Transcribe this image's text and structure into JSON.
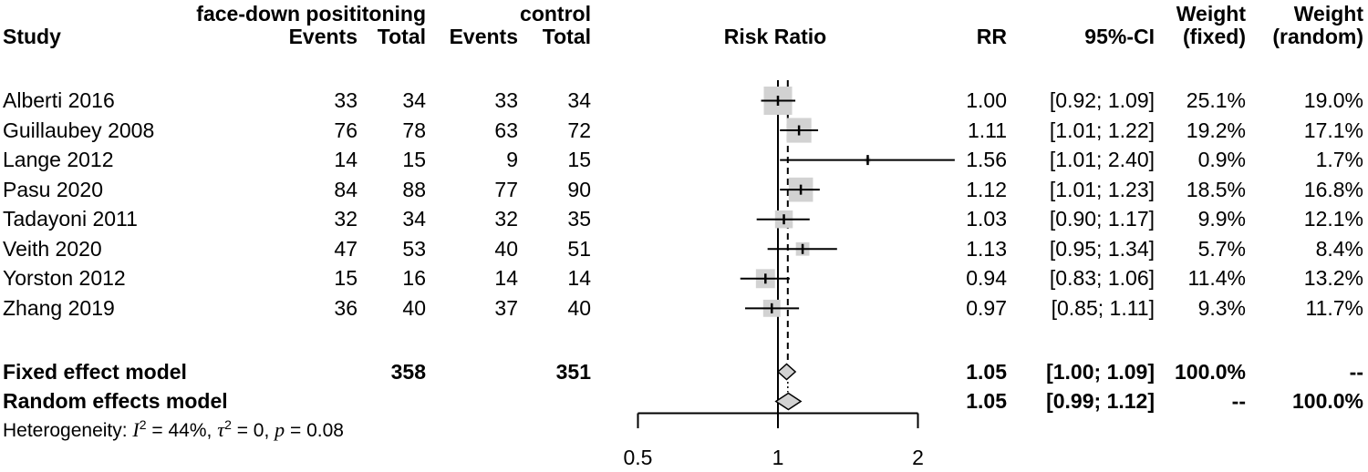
{
  "header": {
    "group_experimental": "face-down posititoning",
    "group_control": "control",
    "study": "Study",
    "events1": "Events",
    "total1": "Total",
    "events2": "Events",
    "total2": "Total",
    "risk_ratio": "Risk Ratio",
    "rr": "RR",
    "ci": "95%-CI",
    "weight_fixed_line1": "Weight",
    "weight_fixed_line2": "(fixed)",
    "weight_random_line1": "Weight",
    "weight_random_line2": "(random)"
  },
  "rows": [
    {
      "study": "Alberti 2016",
      "e1": "33",
      "t1": "34",
      "e2": "33",
      "t2": "34",
      "rr": "1.00",
      "ci": "[0.92; 1.09]",
      "wf": "25.1%",
      "wr": "19.0%"
    },
    {
      "study": "Guillaubey 2008",
      "e1": "76",
      "t1": "78",
      "e2": "63",
      "t2": "72",
      "rr": "1.11",
      "ci": "[1.01; 1.22]",
      "wf": "19.2%",
      "wr": "17.1%"
    },
    {
      "study": "Lange 2012",
      "e1": "14",
      "t1": "15",
      "e2": "9",
      "t2": "15",
      "rr": "1.56",
      "ci": "[1.01; 2.40]",
      "wf": "0.9%",
      "wr": "1.7%"
    },
    {
      "study": "Pasu 2020",
      "e1": "84",
      "t1": "88",
      "e2": "77",
      "t2": "90",
      "rr": "1.12",
      "ci": "[1.01; 1.23]",
      "wf": "18.5%",
      "wr": "16.8%"
    },
    {
      "study": "Tadayoni 2011",
      "e1": "32",
      "t1": "34",
      "e2": "32",
      "t2": "35",
      "rr": "1.03",
      "ci": "[0.90; 1.17]",
      "wf": "9.9%",
      "wr": "12.1%"
    },
    {
      "study": "Veith 2020",
      "e1": "47",
      "t1": "53",
      "e2": "40",
      "t2": "51",
      "rr": "1.13",
      "ci": "[0.95; 1.34]",
      "wf": "5.7%",
      "wr": "8.4%"
    },
    {
      "study": "Yorston 2012",
      "e1": "15",
      "t1": "16",
      "e2": "14",
      "t2": "14",
      "rr": "0.94",
      "ci": "[0.83; 1.06]",
      "wf": "11.4%",
      "wr": "13.2%"
    },
    {
      "study": "Zhang 2019",
      "e1": "36",
      "t1": "40",
      "e2": "37",
      "t2": "40",
      "rr": "0.97",
      "ci": "[0.85; 1.11]",
      "wf": "9.3%",
      "wr": "11.7%"
    }
  ],
  "fixed_row": {
    "label": "Fixed effect model",
    "t1": "358",
    "t2": "351",
    "rr": "1.05",
    "ci": "[1.00; 1.09]",
    "wf": "100.0%",
    "wr": "--"
  },
  "random_row": {
    "label": "Random effects model",
    "rr": "1.05",
    "ci": "[0.99; 1.12]",
    "wf": "--",
    "wr": "100.0%"
  },
  "heterogeneity": {
    "prefix": "Heterogeneity: ",
    "i_sym": "I",
    "i_sup": "2",
    "seg1": " = 44%, ",
    "tau_sym": "τ",
    "tau_sup": "2",
    "seg2": " = 0, ",
    "p_sym": "p",
    "seg3": " = 0.08"
  },
  "chart_data": {
    "type": "forest",
    "effect_measure": "Risk Ratio",
    "x_scale": "log",
    "x_tick_labels": [
      "0.5",
      "1",
      "2"
    ],
    "x_tick_values": [
      0.5,
      1,
      2
    ],
    "reference_line": 1.0,
    "pooled_estimate_line": 1.05,
    "studies": [
      {
        "name": "Alberti 2016",
        "rr": 1.0,
        "ci_low": 0.92,
        "ci_high": 1.09,
        "weight_fixed": 25.1,
        "weight_random": 19.0
      },
      {
        "name": "Guillaubey 2008",
        "rr": 1.11,
        "ci_low": 1.01,
        "ci_high": 1.22,
        "weight_fixed": 19.2,
        "weight_random": 17.1
      },
      {
        "name": "Lange 2012",
        "rr": 1.56,
        "ci_low": 1.01,
        "ci_high": 2.4,
        "weight_fixed": 0.9,
        "weight_random": 1.7
      },
      {
        "name": "Pasu 2020",
        "rr": 1.12,
        "ci_low": 1.01,
        "ci_high": 1.23,
        "weight_fixed": 18.5,
        "weight_random": 16.8
      },
      {
        "name": "Tadayoni 2011",
        "rr": 1.03,
        "ci_low": 0.9,
        "ci_high": 1.17,
        "weight_fixed": 9.9,
        "weight_random": 12.1
      },
      {
        "name": "Veith 2020",
        "rr": 1.13,
        "ci_low": 0.95,
        "ci_high": 1.34,
        "weight_fixed": 5.7,
        "weight_random": 8.4
      },
      {
        "name": "Yorston 2012",
        "rr": 0.94,
        "ci_low": 0.83,
        "ci_high": 1.06,
        "weight_fixed": 11.4,
        "weight_random": 13.2
      },
      {
        "name": "Zhang 2019",
        "rr": 0.97,
        "ci_low": 0.85,
        "ci_high": 1.11,
        "weight_fixed": 9.3,
        "weight_random": 11.7
      }
    ],
    "fixed_effect": {
      "rr": 1.05,
      "ci_low": 1.0,
      "ci_high": 1.09
    },
    "random_effects": {
      "rr": 1.05,
      "ci_low": 0.99,
      "ci_high": 1.12
    },
    "colors": {
      "square_fill": "#d2d2d2",
      "diamond_fill": "#d2d2d2",
      "line": "#000000"
    }
  }
}
